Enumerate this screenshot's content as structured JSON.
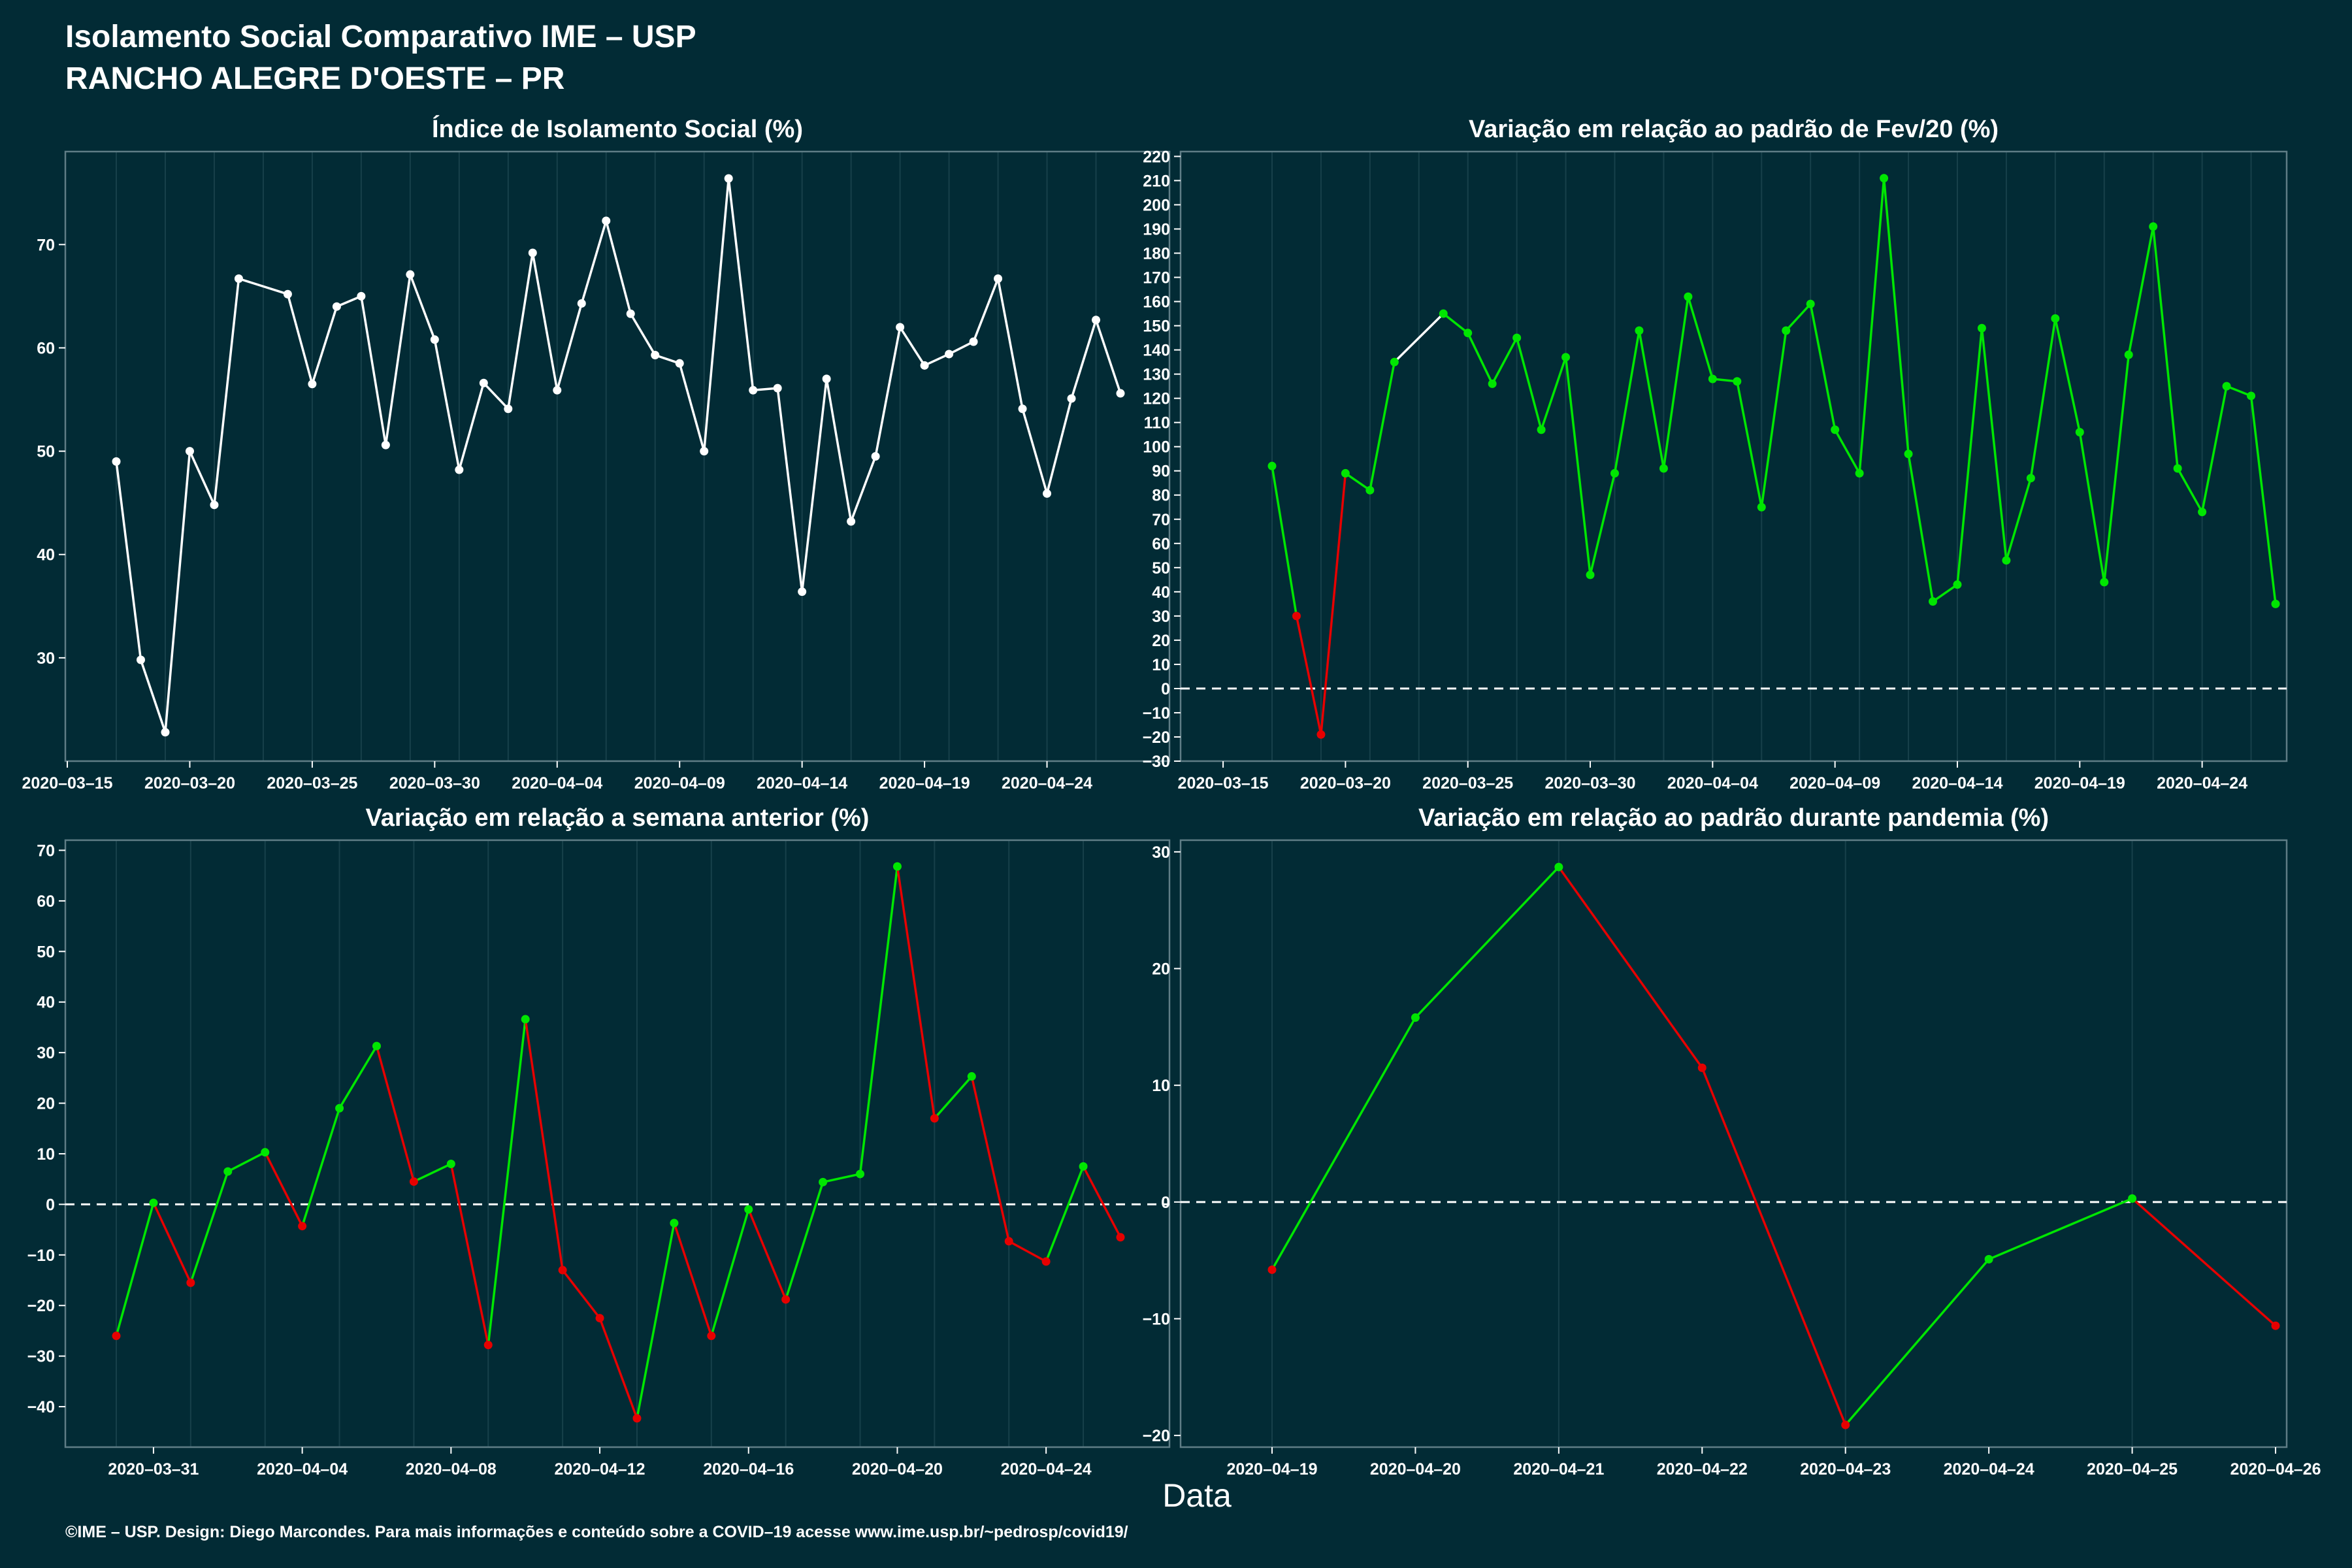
{
  "header": {
    "title": "Isolamento Social Comparativo IME – USP",
    "subtitle": "RANCHO ALEGRE D'OESTE – PR"
  },
  "x_label": "Data",
  "footer": "©IME – USP. Design: Diego Marcondes. Para mais informações e conteúdo sobre a COVID–19 acesse www.ime.usp.br/~pedrosp/covid19/",
  "colors": {
    "background": "#022b35",
    "white": "#ffffff",
    "positive": "#00e600",
    "negative": "#e60000",
    "grid": "#17404a"
  },
  "chart_data": [
    {
      "type": "line",
      "title": "Índice de Isolamento Social (%)",
      "start_date": "2020-03-17",
      "x_ticks": [
        "2020-03-15",
        "2020-03-20",
        "2020-03-25",
        "2020-03-30",
        "2020-04-04",
        "2020-04-09",
        "2020-04-14",
        "2020-04-19",
        "2020-04-24"
      ],
      "ylim": [
        20,
        79
      ],
      "y_ticks": [
        30,
        40,
        50,
        60,
        70
      ],
      "values": [
        49,
        29.8,
        22.8,
        50,
        44.8,
        66.7,
        null,
        65.2,
        56.5,
        64,
        65,
        50.6,
        67.1,
        60.8,
        48.2,
        56.6,
        54.1,
        69.2,
        55.9,
        64.3,
        72.3,
        63.3,
        59.3,
        58.5,
        50,
        76.4,
        55.9,
        56.1,
        36.4,
        57,
        43.2,
        49.5,
        62,
        58.3,
        59.4,
        60.6,
        66.7,
        54.1,
        45.9,
        55.1,
        62.7,
        55.6
      ],
      "color_mode": "white",
      "zero_line": false
    },
    {
      "type": "line",
      "title": "Variação em relação ao padrão de Fev/20 (%)",
      "start_date": "2020-03-17",
      "x_ticks": [
        "2020-03-15",
        "2020-03-20",
        "2020-03-25",
        "2020-03-30",
        "2020-04-04",
        "2020-04-09",
        "2020-04-14",
        "2020-04-19",
        "2020-04-24"
      ],
      "ylim": [
        -30,
        222
      ],
      "y_ticks": [
        -30,
        -20,
        -10,
        0,
        10,
        20,
        30,
        40,
        50,
        60,
        70,
        80,
        90,
        100,
        110,
        120,
        130,
        140,
        150,
        160,
        170,
        180,
        190,
        200,
        210,
        220
      ],
      "values": [
        92,
        30,
        -19,
        89,
        82,
        135,
        null,
        155,
        147,
        126,
        145,
        107,
        137,
        47,
        89,
        148,
        91,
        162,
        128,
        127,
        75,
        148,
        159,
        107,
        89,
        211,
        97,
        36,
        43,
        149,
        53,
        87,
        153,
        106,
        44,
        138,
        191,
        91,
        73,
        125,
        121,
        35
      ],
      "color_mode": "sign",
      "zero_line": true
    },
    {
      "type": "line",
      "title": "Variação em relação a semana anterior (%)",
      "start_date": "2020-03-30",
      "x_ticks": [
        "2020-03-31",
        "2020-04-04",
        "2020-04-08",
        "2020-04-12",
        "2020-04-16",
        "2020-04-20",
        "2020-04-24"
      ],
      "ylim": [
        -48,
        72
      ],
      "y_ticks": [
        -40,
        -30,
        -20,
        -10,
        0,
        10,
        20,
        30,
        40,
        50,
        60,
        70
      ],
      "values": [
        -26,
        0.3,
        -15.5,
        6.5,
        10.3,
        -4.3,
        19,
        31.3,
        4.5,
        8,
        -27.8,
        36.6,
        -13,
        -22.5,
        -42.3,
        -3.7,
        -26,
        -1,
        -18.8,
        4.4,
        6,
        66.8,
        17,
        25.3,
        -7.3,
        -11.3,
        7.5,
        -6.5
      ],
      "color_mode": "diff",
      "zero_line": true
    },
    {
      "type": "line",
      "title": "Variação em relação ao padrão durante pandemia (%)",
      "start_date": "2020-04-19",
      "x_ticks": [
        "2020-04-19",
        "2020-04-20",
        "2020-04-21",
        "2020-04-22",
        "2020-04-23",
        "2020-04-24",
        "2020-04-25",
        "2020-04-26"
      ],
      "ylim": [
        -21,
        31
      ],
      "y_ticks": [
        -20,
        -10,
        0,
        10,
        20,
        30
      ],
      "values": [
        -5.8,
        15.8,
        28.7,
        11.5,
        -19.1,
        -4.9,
        0.3,
        -10.6
      ],
      "color_mode": "diff",
      "zero_line": true
    }
  ]
}
